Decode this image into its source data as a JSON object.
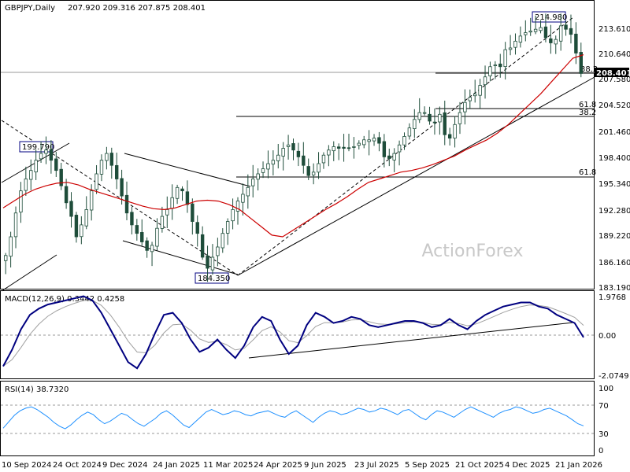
{
  "header": {
    "symbol": "GBPJPY,Daily",
    "ohlc": "207.920 209.316 207.875 208.401"
  },
  "watermark": "ActionForex",
  "chart_data": [
    {
      "type": "candlestick",
      "panel": "price",
      "title": "GBPJPY,Daily",
      "ohlc_last": {
        "open": 207.92,
        "high": 209.316,
        "low": 207.875,
        "close": 208.401
      },
      "ylim": [
        183.19,
        216.67
      ],
      "y_ticks": [
        "213.610",
        "210.640",
        "207.580",
        "204.520",
        "201.460",
        "198.400",
        "195.340",
        "192.280",
        "189.220",
        "186.160",
        "183.190"
      ],
      "current_price": "208.401",
      "close_series": [
        187.0,
        189.2,
        192.0,
        194.6,
        196.0,
        197.0,
        198.2,
        199.0,
        199.4,
        198.2,
        197.0,
        195.2,
        193.2,
        191.6,
        189.2,
        190.6,
        192.4,
        194.6,
        196.6,
        198.2,
        199.0,
        197.6,
        196.0,
        194.0,
        192.0,
        190.6,
        189.6,
        188.6,
        187.6,
        188.2,
        190.2,
        191.6,
        192.4,
        193.8,
        195.0,
        194.6,
        193.0,
        191.0,
        189.6,
        186.8,
        185.5,
        186.8,
        188.0,
        189.6,
        191.0,
        192.4,
        193.4,
        194.2,
        195.0,
        196.0,
        196.6,
        197.2,
        197.8,
        198.2,
        198.8,
        199.6,
        200.0,
        199.4,
        198.6,
        197.6,
        196.4,
        196.8,
        197.8,
        198.8,
        199.4,
        199.8,
        199.6,
        199.6,
        199.6,
        199.8,
        200.2,
        200.6,
        200.6,
        200.8,
        200.2,
        198.6,
        198.4,
        199.0,
        200.0,
        201.0,
        202.0,
        203.0,
        203.8,
        203.8,
        202.8,
        202.6,
        203.6,
        201.2,
        200.8,
        202.4,
        203.8,
        205.0,
        205.6,
        206.0,
        207.0,
        208.0,
        209.2,
        209.4,
        209.2,
        211.2,
        211.4,
        212.2,
        212.8,
        213.2,
        213.4,
        213.6,
        213.8,
        212.6,
        212.0,
        212.4,
        214.0,
        213.6,
        213.0,
        210.8,
        208.4
      ],
      "ma_series": [
        192.6,
        193.4,
        194.2,
        194.8,
        195.2,
        195.5,
        195.6,
        195.3,
        194.8,
        194.4,
        194.0,
        193.6,
        193.2,
        192.8,
        192.5,
        192.4,
        192.6,
        193.0,
        193.4,
        193.5,
        193.4,
        193.0,
        192.4,
        191.4,
        190.4,
        189.4,
        189.2,
        190.0,
        190.8,
        191.6,
        192.4,
        193.1,
        193.9,
        194.8,
        195.6,
        196.0,
        196.4,
        196.8,
        197.0,
        197.3,
        197.7,
        198.2,
        198.7,
        199.4,
        200.0,
        200.6,
        201.4,
        202.4,
        203.6,
        204.8,
        206.0,
        207.4,
        208.8,
        210.2,
        210.6
      ],
      "annotations": [
        {
          "label": "214.980",
          "kind": "high"
        },
        {
          "label": "199.790",
          "kind": "high"
        },
        {
          "label": "184.350",
          "kind": "low"
        }
      ],
      "fib_labels": [
        "38.2",
        "61.8",
        "38.2",
        "61.8"
      ]
    },
    {
      "type": "line",
      "panel": "macd",
      "title": "MACD(12,26,9) 0.3442 0.4258",
      "ylim": [
        -2.0749,
        1.9768
      ],
      "y_ticks": [
        "1.9768",
        "0.00",
        "-2.0749"
      ],
      "macd_series": [
        -1.6,
        -0.8,
        0.2,
        0.9,
        1.2,
        1.4,
        1.5,
        1.6,
        1.7,
        1.8,
        1.6,
        1.0,
        0.2,
        -0.6,
        -1.4,
        -1.7,
        -1.0,
        0.0,
        0.9,
        1.0,
        0.5,
        -0.3,
        -0.9,
        -0.7,
        -0.3,
        -0.8,
        -1.2,
        -0.6,
        0.3,
        0.8,
        0.6,
        -0.3,
        -1.0,
        -0.6,
        0.4,
        1.0,
        0.8,
        0.5,
        0.6,
        0.8,
        0.7,
        0.4,
        0.3,
        0.4,
        0.5,
        0.6,
        0.6,
        0.5,
        0.3,
        0.4,
        0.7,
        0.4,
        0.2,
        0.6,
        0.9,
        1.1,
        1.3,
        1.4,
        1.5,
        1.5,
        1.3,
        1.2,
        0.9,
        0.7,
        0.5,
        -0.2
      ],
      "trendline": "support"
    },
    {
      "type": "line",
      "panel": "rsi",
      "title": "RSI(14) 38.7320",
      "ylim": [
        0,
        100
      ],
      "y_ticks": [
        "100",
        "70",
        "30",
        "0"
      ],
      "levels": [
        70,
        30
      ],
      "rsi_series": [
        35,
        45,
        55,
        62,
        66,
        68,
        64,
        58,
        52,
        44,
        38,
        34,
        40,
        48,
        55,
        60,
        56,
        48,
        42,
        46,
        52,
        58,
        55,
        48,
        42,
        38,
        44,
        50,
        58,
        62,
        56,
        48,
        40,
        36,
        44,
        52,
        60,
        64,
        60,
        56,
        58,
        62,
        60,
        56,
        54,
        58,
        60,
        62,
        58,
        54,
        52,
        58,
        62,
        56,
        50,
        44,
        52,
        58,
        62,
        60,
        56,
        58,
        62,
        66,
        64,
        60,
        62,
        66,
        64,
        60,
        56,
        62,
        64,
        58,
        52,
        48,
        56,
        62,
        60,
        56,
        52,
        58,
        64,
        68,
        64,
        60,
        56,
        52,
        58,
        62,
        64,
        68,
        66,
        62,
        58,
        60,
        64,
        66,
        62,
        58,
        54,
        48,
        42,
        38.7
      ]
    }
  ],
  "x_axis_labels": [
    "10 Sep 2024",
    "24 Oct 2024",
    "9 Dec 2024",
    "24 Jan 2025",
    "11 Mar 2025",
    "24 Apr 2025",
    "9 Jun 2025",
    "23 Jul 2025",
    "5 Sep 2025",
    "21 Oct 2025",
    "4 Dec 2025",
    "21 Jan 2026"
  ],
  "colors": {
    "bull_candle": "#1e4d3a",
    "bear_candle": "#1e4d3a",
    "moving_average": "#cc0000",
    "macd_line": "#000080",
    "macd_signal": "#a0a0a0",
    "rsi_line": "#1e90ff",
    "trendline": "#000000",
    "fib_line": "#000000",
    "label_box_border": "#000080",
    "price_tag_bg": "#000000",
    "price_tag_text": "#ffffff"
  }
}
